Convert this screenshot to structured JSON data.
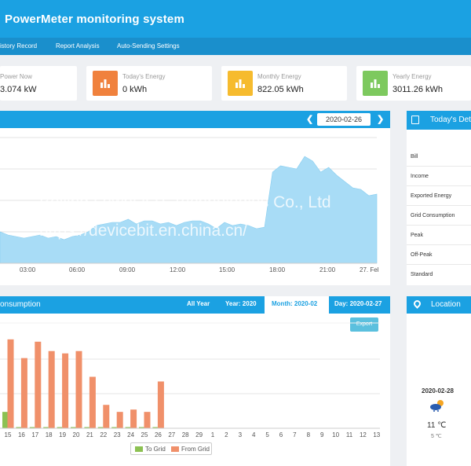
{
  "app": {
    "title": "PowerMeter monitoring system"
  },
  "nav": {
    "items": [
      "istory Record",
      "Report Analysis",
      "Auto-Sending Settings"
    ]
  },
  "stats": [
    {
      "label": "Power Now",
      "value": "3.074 kW"
    },
    {
      "label": "Today's Energy",
      "value": "0 kWh",
      "color": "#f0813d"
    },
    {
      "label": "Monthly Energy",
      "value": "822.05 kWh",
      "color": "#f6bb2e"
    },
    {
      "label": "Yearly Energy",
      "value": "3011.26 kWh",
      "color": "#7dc95e"
    }
  ],
  "power_panel": {
    "date": "2020-02-26",
    "prev_icon": "chevron-left-icon",
    "next_icon": "chevron-right-icon"
  },
  "chart_data": [
    {
      "type": "area",
      "x": [
        "00:00",
        "00:30",
        "01:00",
        "01:30",
        "02:00",
        "02:30",
        "03:00",
        "03:30",
        "04:00",
        "04:30",
        "05:00",
        "05:30",
        "06:00",
        "06:30",
        "07:00",
        "07:30",
        "08:00",
        "08:30",
        "09:00",
        "09:30",
        "10:00",
        "10:30",
        "11:00",
        "11:30",
        "12:00",
        "12:30",
        "13:00",
        "13:30",
        "14:00",
        "14:30",
        "15:00",
        "15:30",
        "16:00",
        "16:30",
        "17:00",
        "17:30",
        "18:00",
        "18:30",
        "19:00",
        "19:30",
        "20:00",
        "20:30",
        "21:00",
        "21:30",
        "22:00",
        "22:30",
        "23:00",
        "23:30"
      ],
      "values": [
        2,
        1.8,
        1.7,
        1.6,
        1.7,
        1.8,
        1.6,
        1.7,
        1.5,
        1.7,
        1.8,
        2,
        2.4,
        2.5,
        2.6,
        2.6,
        2.8,
        2.5,
        2.7,
        2.7,
        2.5,
        2.6,
        2.4,
        2.6,
        2.7,
        2.7,
        2.5,
        2.2,
        2.6,
        2.4,
        2.5,
        2.4,
        2.2,
        2.3,
        5.8,
        6.2,
        6.1,
        6,
        6.8,
        6.5,
        5.8,
        6.1,
        5.6,
        5.2,
        4.8,
        4.7,
        4.3,
        4.4
      ],
      "x_ticks": [
        "03:00",
        "06:00",
        "09:00",
        "12:00",
        "15:00",
        "18:00",
        "21:00",
        "27. Fel"
      ],
      "ylim": [
        0,
        8
      ],
      "color": "#a8dcf6",
      "grid": true
    },
    {
      "type": "bar",
      "categories": [
        "15",
        "16",
        "17",
        "18",
        "19",
        "20",
        "21",
        "22",
        "23",
        "24",
        "25",
        "26",
        "27",
        "28",
        "29",
        "1",
        "2",
        "3",
        "4",
        "5",
        "6",
        "7",
        "8",
        "9",
        "10",
        "11",
        "12",
        "13"
      ],
      "series": [
        {
          "name": "To Grid",
          "color": "#8cc152",
          "values": [
            7,
            0.5,
            0.5,
            0.5,
            0.5,
            0.5,
            0.5,
            0.5,
            0.5,
            0.5,
            0.5,
            0.5,
            0,
            0,
            0,
            0,
            0,
            0,
            0,
            0,
            0,
            0,
            0,
            0,
            0,
            0,
            0,
            0
          ]
        },
        {
          "name": "From Grid",
          "color": "#f0906a",
          "values": [
            38,
            30,
            37,
            33,
            32,
            33,
            22,
            10,
            7,
            8,
            7,
            20,
            0,
            0,
            0,
            0,
            0,
            0,
            0,
            0,
            0,
            0,
            0,
            0,
            0,
            0,
            0,
            0
          ]
        }
      ],
      "ylim": [
        0,
        45
      ],
      "grid": true,
      "legend": "bottom"
    }
  ],
  "consumption_panel": {
    "title": "onsumption",
    "tabs": [
      "All Year",
      "Year: 2020",
      "Month: 2020-02",
      "Day: 2020-02-27"
    ],
    "export_label": "Export"
  },
  "details_panel": {
    "title": "Today's Det",
    "rows": [
      "Bill",
      "Income",
      "Exported Energy",
      "Grid Consumption",
      "Peak",
      "Off-Peak",
      "Standard"
    ]
  },
  "location_panel": {
    "title": "Location",
    "date": "2020-02-28",
    "temperature": "11 ℃",
    "low": "5 ℃",
    "weather_icon": "partly-cloudy-icon"
  },
  "watermark": {
    "line1": "Beijing Lewei IOT Technologies Co., Ltd",
    "line2": "https://devicebit.en.china.cn/"
  }
}
